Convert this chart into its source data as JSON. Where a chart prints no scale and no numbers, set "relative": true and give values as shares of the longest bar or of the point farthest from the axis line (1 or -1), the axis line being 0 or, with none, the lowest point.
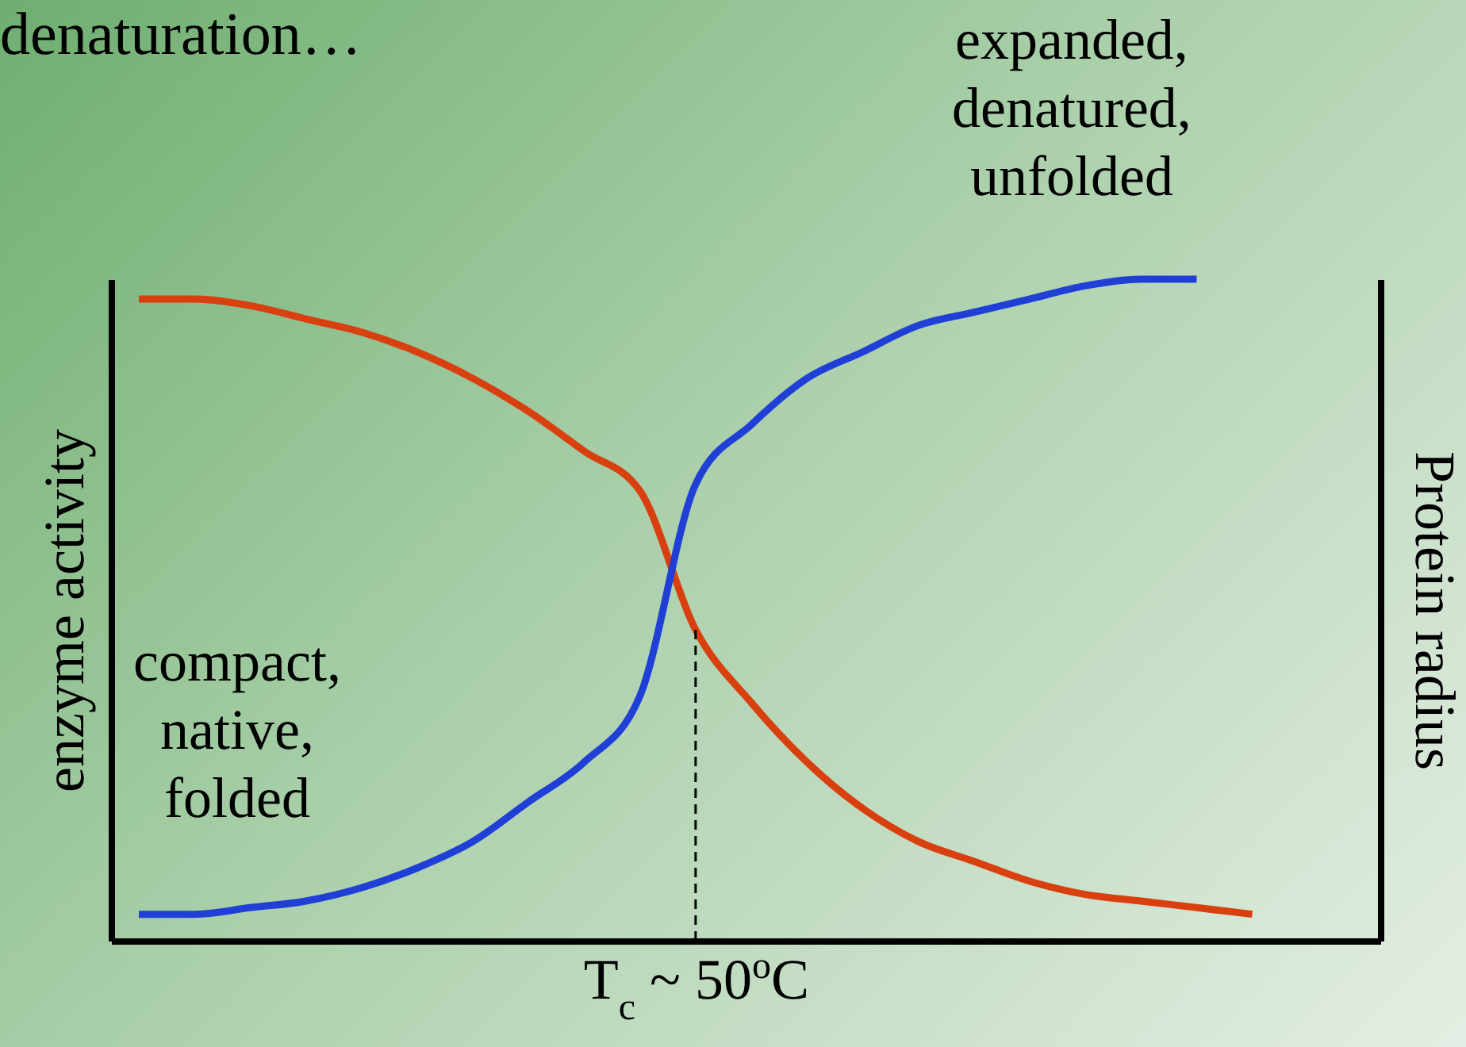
{
  "chart_data": {
    "type": "line",
    "title": "denaturation…",
    "xlabel": "T$_{c}$ ~ 50$^{o}$C",
    "ylabel": "enzyme activity",
    "y2label": "Protein radius",
    "relative": true,
    "marker": "none",
    "line_style": "solid",
    "categories": [
      null,
      null,
      null,
      null,
      null,
      null,
      null,
      null,
      null,
      null,
      null,
      null,
      null,
      null,
      null,
      null,
      null,
      null,
      null,
      null,
      null
    ],
    "series": [
      {
        "color": "#d9400f",
        "values": [
          0.97,
          0.97,
          0.96,
          0.94,
          0.92,
          0.89,
          0.85,
          0.8,
          0.74,
          0.68,
          0.47,
          0.36,
          0.27,
          0.2,
          0.15,
          0.12,
          0.09,
          0.07,
          0.06,
          0.05,
          0.04
        ]
      },
      {
        "color": "#1f3fd6",
        "values": [
          0.04,
          0.04,
          0.05,
          0.06,
          0.08,
          0.11,
          0.15,
          0.21,
          0.27,
          0.37,
          0.69,
          0.78,
          0.85,
          0.89,
          0.93,
          0.95,
          0.97,
          0.99,
          1.0,
          1.0,
          null
        ]
      }
    ],
    "annotations": [
      "expanded,\ndenatured,\nunfolded",
      "compact,\nnative,\nfolded"
    ]
  }
}
